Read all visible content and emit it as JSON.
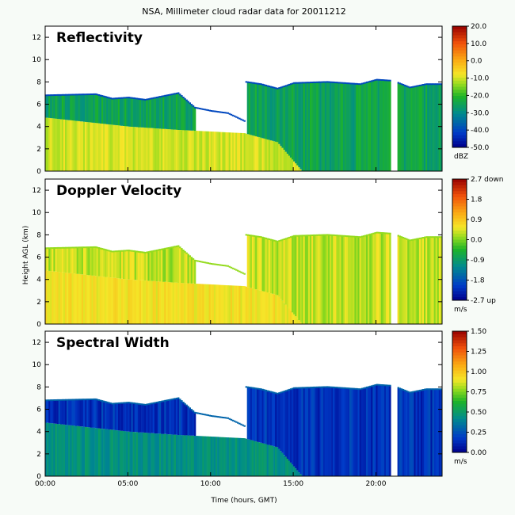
{
  "chart_data": {
    "type": "heatmap",
    "title": "NSA, Millimeter cloud radar data for 20011212",
    "xlabel": "Time (hours, GMT)",
    "ylabel": "Height AGL (km)",
    "x_ticks": [
      "00:00",
      "05:00",
      "10:00",
      "15:00",
      "20:00"
    ],
    "xlim_hours": [
      0,
      24
    ],
    "ylim_km": [
      0,
      13
    ],
    "y_ticks": [
      0,
      2,
      4,
      6,
      8,
      10,
      12
    ],
    "data_gap_hours": [
      20.9,
      21.3
    ],
    "cloud_top_km": [
      [
        0,
        6.8
      ],
      [
        3,
        6.9
      ],
      [
        4,
        6.5
      ],
      [
        5,
        6.6
      ],
      [
        6,
        6.4
      ],
      [
        8,
        7.0
      ],
      [
        9,
        5.7
      ],
      [
        10,
        5.4
      ],
      [
        11,
        5.2
      ],
      [
        12,
        4.5
      ],
      [
        12.1,
        8.0
      ],
      [
        13,
        7.8
      ],
      [
        14,
        7.4
      ],
      [
        15,
        7.9
      ],
      [
        17,
        8.0
      ],
      [
        19,
        7.8
      ],
      [
        20,
        8.2
      ],
      [
        21,
        8.1
      ],
      [
        22,
        7.5
      ],
      [
        23,
        7.8
      ],
      [
        24,
        7.8
      ]
    ],
    "lower_layer_top_km": [
      [
        0,
        4.8
      ],
      [
        5,
        4.0
      ],
      [
        8,
        3.7
      ],
      [
        12,
        3.4
      ],
      [
        14,
        2.6
      ],
      [
        15.5,
        0.0
      ]
    ],
    "panels": [
      {
        "title": "Reflectivity",
        "colorbar_ticks": [
          "20.0",
          "10.0",
          "0.0",
          "-10.0",
          "-20.0",
          "-30.0",
          "-40.0",
          "-50.0"
        ],
        "units": "dBZ",
        "range": [
          -50,
          20
        ],
        "typical_values": {
          "low_cloud": -10,
          "high_cloud": -25,
          "cloud_edge": -40
        }
      },
      {
        "title": "Doppler Velocity",
        "colorbar_ticks": [
          "2.7 down",
          "1.8",
          "0.9",
          "0.0",
          "-0.9",
          "-1.8",
          "-2.7 up"
        ],
        "units": "m/s",
        "range": [
          -2.7,
          2.7
        ],
        "typical_values": {
          "low_cloud": 0.6,
          "high_cloud": 0.3,
          "cloud_edge": 0.1
        }
      },
      {
        "title": "Spectral Width",
        "colorbar_ticks": [
          "1.50",
          "1.25",
          "1.00",
          "0.75",
          "0.50",
          "0.25",
          "0.00"
        ],
        "units": "m/s",
        "range": [
          0,
          1.5
        ],
        "typical_values": {
          "low_cloud": 0.45,
          "high_cloud": 0.15,
          "cloud_edge": 0.3
        }
      }
    ]
  }
}
